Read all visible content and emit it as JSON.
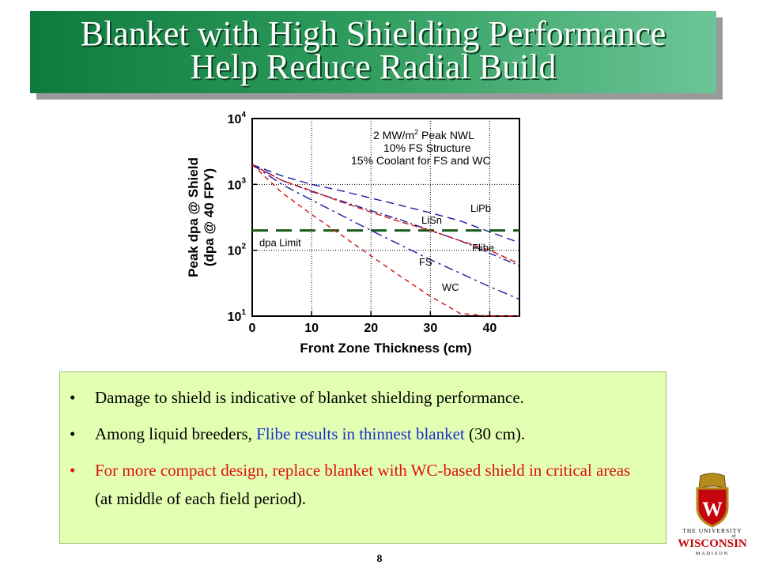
{
  "title": {
    "line1": "Blanket with High Shielding Performance",
    "line2": "Help Reduce Radial Build"
  },
  "chart_data": {
    "type": "line",
    "xlabel": "Front Zone Thickness (cm)",
    "ylabel_line1": "Peak dpa @ Shield",
    "ylabel_line2": "(dpa @ 40 FPY)",
    "xlim": [
      0,
      45
    ],
    "ylim": [
      10,
      10000
    ],
    "yscale": "log",
    "xticks": [
      "0",
      "10",
      "20",
      "30",
      "40"
    ],
    "xtick_values": [
      0,
      10,
      20,
      30,
      40
    ],
    "yticks": [
      {
        "base": "10",
        "exp": "1",
        "value": 10
      },
      {
        "base": "10",
        "exp": "2",
        "value": 100
      },
      {
        "base": "10",
        "exp": "3",
        "value": 1000
      },
      {
        "base": "10",
        "exp": "4",
        "value": 10000
      }
    ],
    "grid": true,
    "annotation": {
      "line1_base": "2 MW/m",
      "line1_sup": "2",
      "line1_rest": " Peak NWL",
      "line2": "10% FS Structure",
      "line3": "15% Coolant for FS and WC"
    },
    "limit": {
      "label": "dpa Limit",
      "value": 200,
      "color": "#1a5a1a"
    },
    "series": [
      {
        "name": "LiPb",
        "color": "#1a1aa0",
        "x": [
          0,
          5,
          10,
          15,
          20,
          25,
          30,
          35,
          40,
          45
        ],
        "y": [
          2000,
          1350,
          1000,
          800,
          620,
          480,
          370,
          280,
          190,
          130
        ]
      },
      {
        "name": "LiSn",
        "color": "#1a1aa0",
        "x": [
          0,
          5,
          10,
          15,
          20,
          25,
          30,
          35,
          40,
          45
        ],
        "y": [
          2000,
          1150,
          780,
          560,
          400,
          290,
          200,
          140,
          90,
          58
        ]
      },
      {
        "name": "Flibe",
        "color": "#d01010",
        "x": [
          0,
          5,
          10,
          15,
          20,
          25,
          30,
          35,
          40,
          45
        ],
        "y": [
          2000,
          1150,
          800,
          540,
          380,
          270,
          200,
          140,
          100,
          62
        ]
      },
      {
        "name": "FS",
        "color": "#1a1aa0",
        "x": [
          0,
          5,
          10,
          15,
          20,
          25,
          30,
          35,
          40,
          45
        ],
        "y": [
          2000,
          1000,
          580,
          340,
          200,
          120,
          72,
          45,
          28,
          18
        ]
      },
      {
        "name": "WC",
        "color": "#d01010",
        "x": [
          0,
          5,
          10,
          15,
          20,
          25,
          30,
          35,
          40,
          45
        ],
        "y": [
          2000,
          750,
          350,
          170,
          82,
          40,
          20,
          11,
          10,
          10
        ]
      }
    ]
  },
  "bullets": [
    {
      "parts": [
        {
          "text": "Damage to shield is indicative of blanket shielding performance.",
          "color": "black"
        }
      ]
    },
    {
      "parts": [
        {
          "text": "Among liquid breeders, ",
          "color": "black"
        },
        {
          "text": "Flibe results in thinnest blanket",
          "color": "blue"
        },
        {
          "text": " (30 cm).",
          "color": "black"
        }
      ]
    },
    {
      "parts": [
        {
          "text": "For more compact design, replace blanket with WC-based shield in critical areas",
          "color": "red"
        },
        {
          "text": " (at middle of each field period).",
          "color": "black"
        }
      ]
    }
  ],
  "bullet_symbol": "•",
  "logo": {
    "line1": "THE UNIVERSITY",
    "line2": "of",
    "line3": "WISCONSIN",
    "line4": "MADISON",
    "crest_letter": "W",
    "primary_color": "#c5050c"
  },
  "page_number": "8"
}
